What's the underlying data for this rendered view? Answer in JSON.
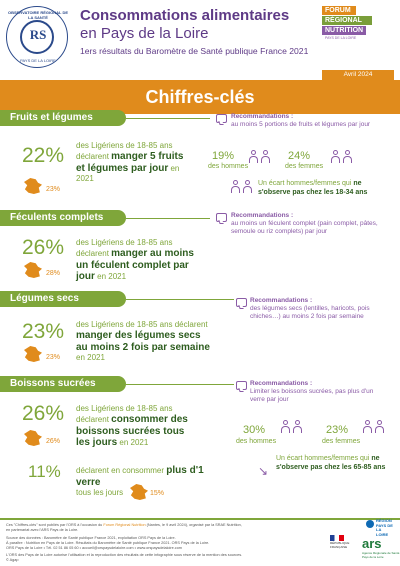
{
  "header": {
    "ors_logo": {
      "text_top": "OBSERVATOIRE RÉGIONAL DE LA SANTÉ",
      "monogram": "RS",
      "text_bottom": "PAYS DE LA LOIRE"
    },
    "title_line1": "Consommations alimentaires",
    "title_line2": "en Pays de la Loire",
    "subtitle": "1ers résultats du Baromètre de Santé publique France 2021",
    "forum_logo": {
      "line1": "FORUM",
      "line2": "RÉGIONAL",
      "line3": "NUTRITION",
      "line4": "PAYS DE LA LOIRE"
    },
    "date": "Avril 2024"
  },
  "banner": "Chiffres-clés",
  "sections": {
    "fruits": {
      "title": "Fruits et légumes",
      "pct": "22%",
      "desc_pre": "des Ligériens de 18-85 ans déclarent",
      "desc_bold": "manger 5 fruits et légumes par jour",
      "desc_post": "en 2021",
      "france_pct": "23%",
      "reco_title": "Recommandations :",
      "reco_text": "au moins 5 portions de fruits et légumes par jour",
      "men_pct": "19%",
      "men_label": "des hommes",
      "women_pct": "24%",
      "women_label": "des femmes",
      "gap_pre": "Un écart hommes/femmes qui",
      "gap_bold": "ne s'observe pas chez les 18-34 ans"
    },
    "feculents": {
      "title": "Féculents complets",
      "pct": "26%",
      "desc_pre": "des Ligériens de 18-85 ans déclarent",
      "desc_bold": "manger au moins un féculent complet par jour",
      "desc_post": "en 2021",
      "france_pct": "28%",
      "reco_title": "Recommandations :",
      "reco_text": "au moins un féculent complet (pain complet, pâtes, semoule ou riz complets) par jour"
    },
    "legumes": {
      "title": "Légumes secs",
      "pct": "23%",
      "desc_pre": "des Ligériens de 18-85 ans déclarent",
      "desc_bold": "manger des légumes secs au moins 2 fois par semaine",
      "desc_post": "en 2021",
      "france_pct": "23%",
      "reco_title": "Recommandations :",
      "reco_text": "des légumes secs (lentilles, haricots, pois chiches…) au moins 2 fois par semaine"
    },
    "boissons": {
      "title": "Boissons sucrées",
      "pct": "26%",
      "desc_pre": "des Ligériens de 18-85 ans déclarent",
      "desc_bold": "consommer des boissons sucrées tous les jours",
      "desc_post": "en 2021",
      "france_pct": "26%",
      "reco_title": "Recommandations :",
      "reco_text": "Limiter les boissons sucrées, pas plus d'un verre par jour",
      "men_pct": "30%",
      "men_label": "des hommes",
      "women_pct": "23%",
      "women_label": "des femmes",
      "pct2": "11%",
      "desc2_pre": "déclarent en consommer",
      "desc2_bold": "plus d'1 verre",
      "desc2_post": "tous les jours",
      "france_pct2": "15%",
      "gap_pre": "Un écart hommes/femmes qui",
      "gap_bold": "ne s'observe pas chez les 65-85 ans"
    }
  },
  "footer": {
    "line1_pre": "Ces \"Chiffres-clés\" sont publiés par l'ORS à l'occasion du",
    "line1_link": "Forum Régional Nutrition",
    "line1_post": "(Nantes, le 9 avril 2024), organisé par la SRAE Nutrition,",
    "line2": "en partenariat avec l'ARS Pays de la Loire.",
    "source1": "Source des données : Baromètre de Santé publique France 2021, exploitation ORS Pays de la Loire.",
    "source2": "À paraître : Nutrition en Pays de la Loire. Résultats du Baromètre de Santé publique France 2021. ORS Pays de la Loire.",
    "contact": "ORS Pays de la Loire • Tél. 02 51 86 05 60 • accueil@orspaysdelaloire.com • www.orspaysdelaloire.com",
    "copyright": "L'ORS des Pays de la Loire autorise l'utilisation et la reproduction des résultats de cette infographie sous réserve de la mention des sources.",
    "credit": "© Agap",
    "rf_text": "RÉPUBLIQUE FRANÇAISE",
    "region_text": "RÉGION PAYS DE LA LOIRE",
    "ars": "ars",
    "ars_sub": "Agence Régionale de Santé Pays de la Loire"
  },
  "colors": {
    "orange": "#e08b1c",
    "green": "#7fa63a",
    "dark_green": "#2e5d1f",
    "purple": "#8a5ba6"
  }
}
